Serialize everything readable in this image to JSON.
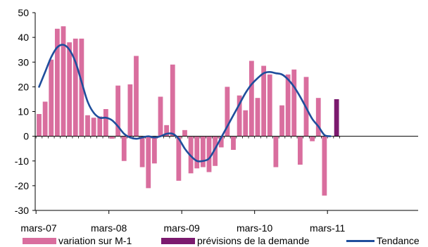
{
  "chart_data": {
    "type": "bar",
    "title": "",
    "xlabel": "",
    "ylabel": "",
    "ylim": [
      -30,
      50
    ],
    "yticks": [
      -30,
      -20,
      -10,
      0,
      10,
      20,
      30,
      40,
      50
    ],
    "x_tick_labels": [
      "mars-07",
      "mars-08",
      "mars-09",
      "mars-10",
      "mars-11"
    ],
    "x_tick_months": [
      0,
      12,
      24,
      36,
      48
    ],
    "grid": false,
    "legend_position": "bottom",
    "series": [
      {
        "name": "variation sur M-1",
        "kind": "bar",
        "color": "#d96e9e",
        "months": [
          0,
          1,
          2,
          3,
          4,
          5,
          6,
          7,
          8,
          9,
          10,
          11,
          12,
          13,
          14,
          15,
          16,
          17,
          18,
          19,
          20,
          21,
          22,
          23,
          24,
          25,
          26,
          27,
          28,
          29,
          30,
          31,
          32,
          33,
          34,
          35,
          36,
          37,
          38,
          39,
          40,
          41,
          42,
          43,
          44,
          45,
          46,
          47
        ],
        "values": [
          9,
          14,
          31,
          43.5,
          44.5,
          38,
          39.5,
          39.5,
          8.5,
          7.5,
          8,
          11,
          -1,
          20.5,
          -10,
          21,
          32.5,
          -12.5,
          -21,
          -11,
          16,
          4.5,
          29,
          -18,
          2.5,
          -15,
          -13,
          -12.5,
          -14.5,
          -12,
          -4.5,
          20,
          -5.5,
          16.5,
          10.5,
          30.5,
          15.5,
          28.5,
          25,
          -12.5,
          12.5,
          25,
          27,
          -11.5,
          24,
          -2,
          15.5,
          -24
        ]
      },
      {
        "name": "prévisions de la demande",
        "kind": "bar",
        "color": "#7b1a6e",
        "months": [
          49
        ],
        "values": [
          15
        ]
      },
      {
        "name": "Tendance",
        "kind": "line",
        "color": "#1f4e9c",
        "months": [
          0,
          1,
          2,
          3,
          4,
          5,
          6,
          7,
          8,
          9,
          10,
          11,
          12,
          13,
          14,
          15,
          16,
          17,
          18,
          19,
          20,
          21,
          22,
          23,
          24,
          25,
          26,
          27,
          28,
          29,
          30,
          31,
          32,
          33,
          34,
          35,
          36,
          37,
          38,
          39,
          40,
          41,
          42,
          43,
          44,
          45,
          46,
          47,
          48
        ],
        "values": [
          20,
          26,
          32,
          36,
          37,
          35,
          30,
          22,
          14,
          9.5,
          7.5,
          7.5,
          6.5,
          4,
          1,
          -0.5,
          -1,
          -0.5,
          0,
          -0.5,
          0,
          1,
          1,
          -1,
          -5,
          -8,
          -10,
          -10,
          -9,
          -5,
          -0.5,
          4,
          8.5,
          13,
          17.5,
          21,
          23.5,
          25.5,
          26,
          25.5,
          25,
          23,
          20,
          16,
          11.5,
          7,
          4,
          0.5,
          0
        ]
      }
    ]
  }
}
